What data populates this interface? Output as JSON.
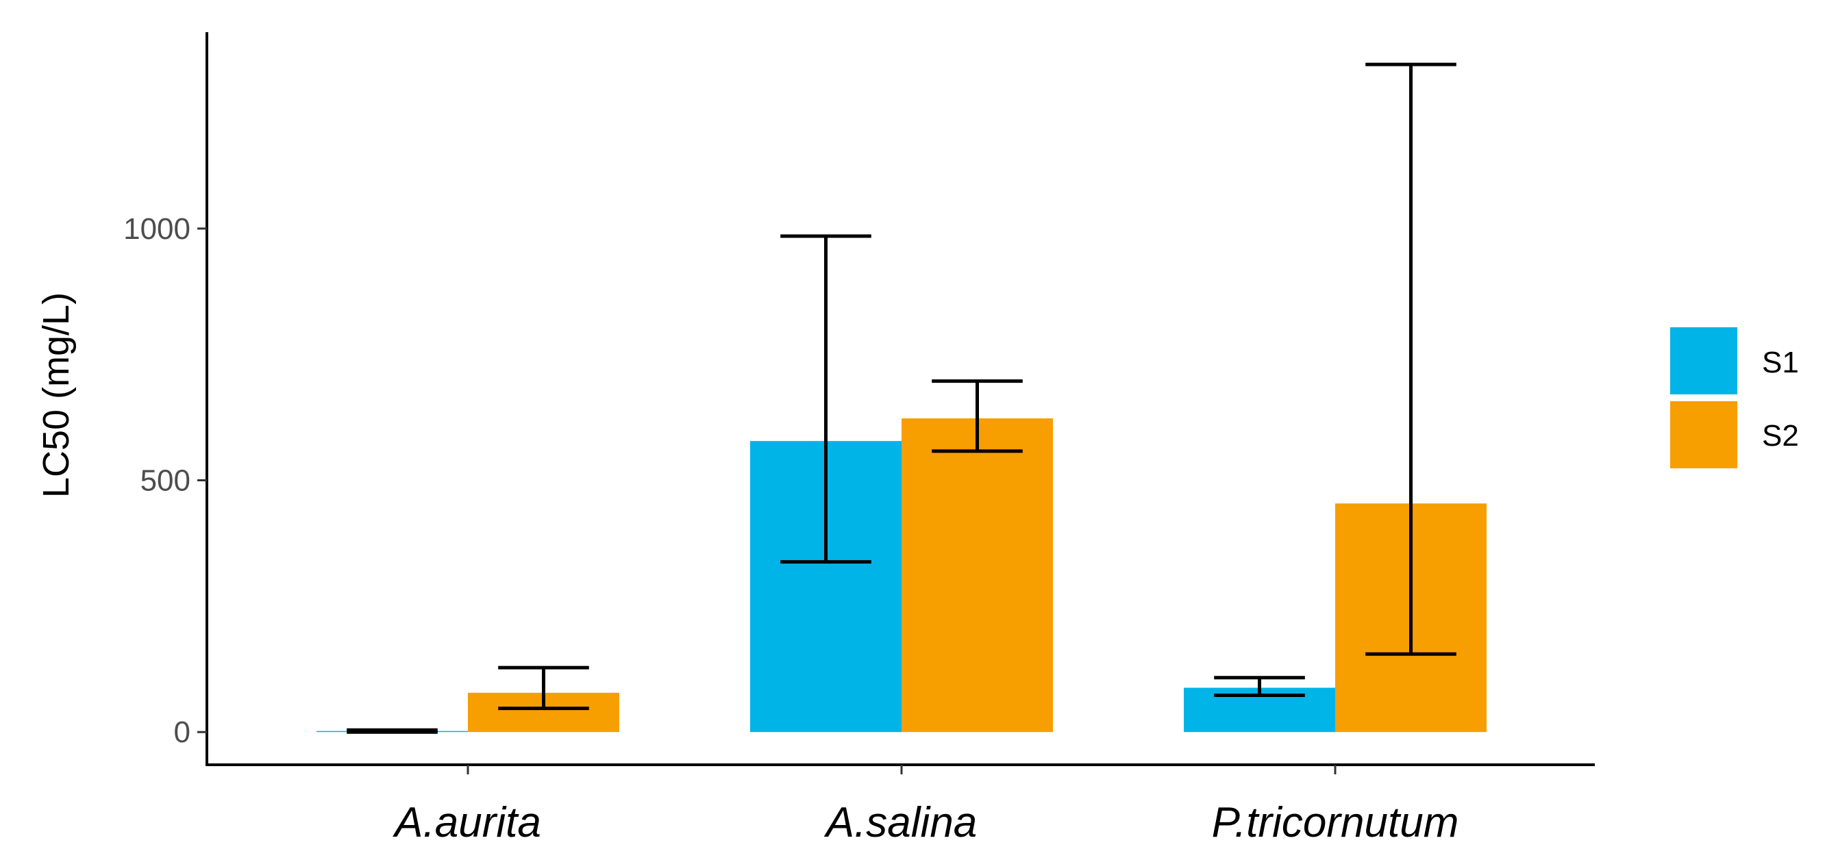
{
  "chart_data": {
    "type": "bar",
    "title": "",
    "xlabel": "",
    "ylabel": "LC50 (mg/L)",
    "categories": [
      "A.aurita",
      "A.salina",
      "P.tricornutum"
    ],
    "series": [
      {
        "name": "S1",
        "color": "#00b4e8",
        "values": [
          2,
          578,
          88
        ],
        "err_low": [
          0,
          338,
          73
        ],
        "err_high": [
          4,
          985,
          108
        ]
      },
      {
        "name": "S2",
        "color": "#f79e00",
        "values": [
          78,
          623,
          454
        ],
        "err_low": [
          47,
          558,
          155
        ],
        "err_high": [
          128,
          697,
          1326
        ]
      }
    ],
    "yticks": [
      0,
      500,
      1000
    ],
    "ytick_labels": [
      "0",
      "500",
      "1000"
    ],
    "ylim": [
      -65,
      1390
    ],
    "grid": false,
    "legend": "right"
  }
}
